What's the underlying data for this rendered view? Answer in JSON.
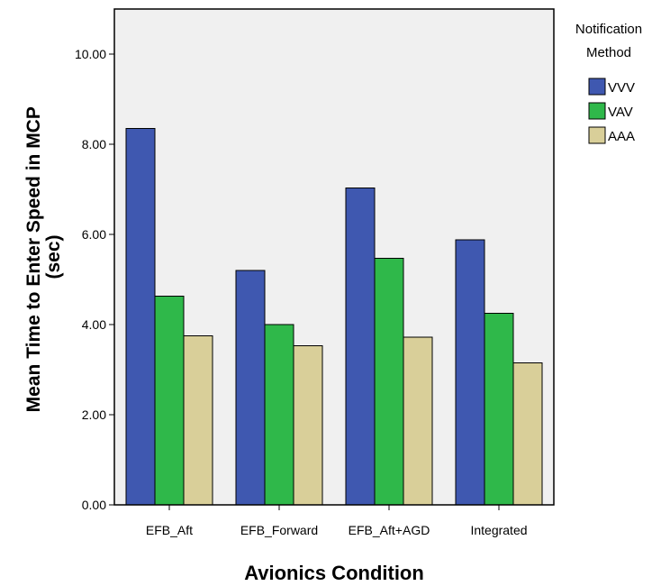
{
  "chart_data": {
    "type": "bar",
    "title": "",
    "xlabel": "Avionics Condition",
    "ylabel_lines": [
      "Mean Time to Enter Speed in MCP",
      "(sec)"
    ],
    "categories": [
      "EFB_Aft",
      "EFB_Forward",
      "EFB_Aft+AGD",
      "Integrated"
    ],
    "series": [
      {
        "name": "VVV",
        "color": "#3f58b0",
        "values": [
          8.35,
          5.2,
          7.03,
          5.88
        ]
      },
      {
        "name": "VAV",
        "color": "#2fb84a",
        "values": [
          4.63,
          4.0,
          5.47,
          4.25
        ]
      },
      {
        "name": "AAA",
        "color": "#d9cf99",
        "values": [
          3.75,
          3.53,
          3.72,
          3.15
        ]
      }
    ],
    "ylim": [
      0,
      11.0
    ],
    "yticks": [
      "0.00",
      "2.00",
      "4.00",
      "6.00",
      "8.00",
      "10.00"
    ],
    "legend_title_lines": [
      "Notification",
      "Method"
    ],
    "legend_position": "right",
    "grid": false,
    "plot_background": "#f0f0f0"
  }
}
